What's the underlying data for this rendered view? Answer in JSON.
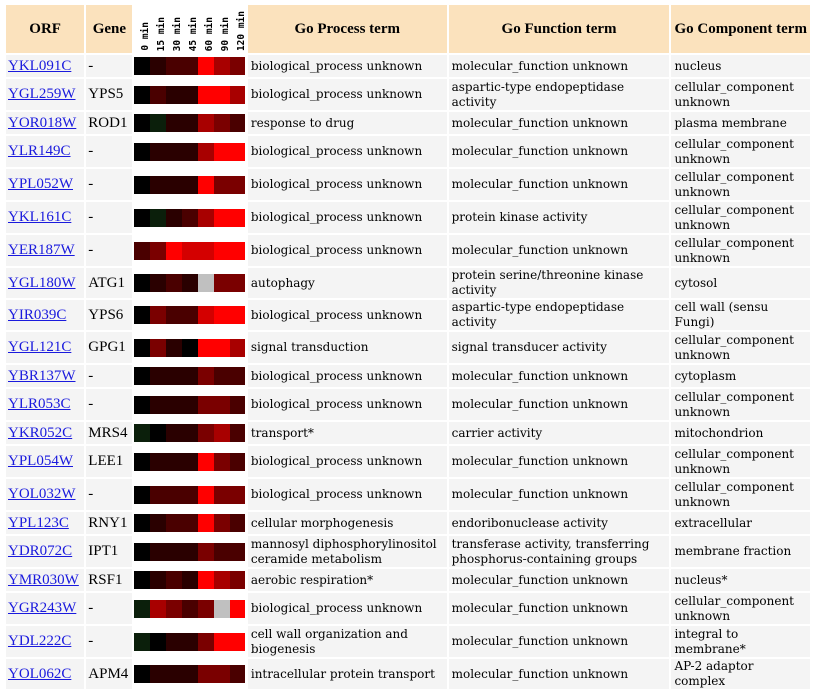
{
  "headers": {
    "orf": "ORF",
    "gene": "Gene",
    "process": "Go Process term",
    "function": "Go Function term",
    "component": "Go Component term"
  },
  "time_points": [
    "0 min",
    "15 min",
    "30 min",
    "45 min",
    "60 min",
    "90 min",
    "120 min"
  ],
  "heat_colors": {
    "n": "#000000",
    "g": "#0b1f0b",
    "a": "#2a0000",
    "b": "#4a0000",
    "c": "#7a0000",
    "d": "#a80000",
    "e": "#d40000",
    "r": "#ff0000",
    "x": "#c0c0c0"
  },
  "rows": [
    {
      "orf": "YKL091C",
      "gene": "-",
      "heat": "nabbrdc",
      "process": "biological_process unknown",
      "function": "molecular_function unknown",
      "component": "nucleus"
    },
    {
      "orf": "YGL259W",
      "gene": "YPS5",
      "heat": "nbaarrd",
      "process": "biological_process unknown",
      "function": "aspartic-type endopeptidase activity",
      "component": "cellular_component unknown"
    },
    {
      "orf": "YOR018W",
      "gene": "ROD1",
      "heat": "ngaadcb",
      "process": "response to drug",
      "function": "molecular_function unknown",
      "component": "plasma membrane"
    },
    {
      "orf": "YLR149C",
      "gene": "-",
      "heat": "naaadrr",
      "process": "biological_process unknown",
      "function": "molecular_function unknown",
      "component": "cellular_component unknown"
    },
    {
      "orf": "YPL052W",
      "gene": "-",
      "heat": "naaarcc",
      "process": "biological_process unknown",
      "function": "molecular_function unknown",
      "component": "cellular_component unknown"
    },
    {
      "orf": "YKL161C",
      "gene": "-",
      "heat": "ngabdrr",
      "process": "biological_process unknown",
      "function": "protein kinase activity",
      "component": "cellular_component unknown"
    },
    {
      "orf": "YER187W",
      "gene": "-",
      "heat": "bcreerr",
      "process": "biological_process unknown",
      "function": "molecular_function unknown",
      "component": "cellular_component unknown"
    },
    {
      "orf": "YGL180W",
      "gene": "ATG1",
      "heat": "nabaxcc",
      "process": "autophagy",
      "function": "protein serine/threonine kinase activity",
      "component": "cytosol"
    },
    {
      "orf": "YIR039C",
      "gene": "YPS6",
      "heat": "ncbberr",
      "process": "biological_process unknown",
      "function": "aspartic-type endopeptidase activity",
      "component": "cell wall (sensu Fungi)"
    },
    {
      "orf": "YGL121C",
      "gene": "GPG1",
      "heat": "ncanrrd",
      "process": "signal transduction",
      "function": "signal transducer activity",
      "component": "cellular_component unknown"
    },
    {
      "orf": "YBR137W",
      "gene": "-",
      "heat": "naaacbb",
      "process": "biological_process unknown",
      "function": "molecular_function unknown",
      "component": "cytoplasm"
    },
    {
      "orf": "YLR053C",
      "gene": "-",
      "heat": "naaaccb",
      "process": "biological_process unknown",
      "function": "molecular_function unknown",
      "component": "cellular_component unknown"
    },
    {
      "orf": "YKR052C",
      "gene": "MRS4",
      "heat": "gnaacdb",
      "process": "transport*",
      "function": "carrier activity",
      "component": "mitochondrion"
    },
    {
      "orf": "YPL054W",
      "gene": "LEE1",
      "heat": "naaarcb",
      "process": "biological_process unknown",
      "function": "molecular_function unknown",
      "component": "cellular_component unknown"
    },
    {
      "orf": "YOL032W",
      "gene": "-",
      "heat": "nbbbrcc",
      "process": "biological_process unknown",
      "function": "molecular_function unknown",
      "component": "cellular_component unknown"
    },
    {
      "orf": "YPL123C",
      "gene": "RNY1",
      "heat": "nabbrcb",
      "process": "cellular morphogenesis",
      "function": "endoribonuclease activity",
      "component": "extracellular"
    },
    {
      "orf": "YDR072C",
      "gene": "IPT1",
      "heat": "naaacbb",
      "process": "mannosyl diphosphorylinositol ceramide metabolism",
      "function": "transferase activity, transferring phosphorus-containing groups",
      "component": "membrane fraction"
    },
    {
      "orf": "YMR030W",
      "gene": "RSF1",
      "heat": "nabardc",
      "process": "aerobic respiration*",
      "function": "molecular_function unknown",
      "component": "nucleus*"
    },
    {
      "orf": "YGR243W",
      "gene": "-",
      "heat": "gdcbcxr",
      "process": "biological_process unknown",
      "function": "molecular_function unknown",
      "component": "cellular_component unknown"
    },
    {
      "orf": "YDL222C",
      "gene": "-",
      "heat": "gnaacrr",
      "process": "cell wall organization and biogenesis",
      "function": "molecular_function unknown",
      "component": "integral to membrane*"
    },
    {
      "orf": "YOL062C",
      "gene": "APM4",
      "heat": "naaaccb",
      "process": "intracellular protein transport",
      "function": "molecular_function unknown",
      "component": "AP-2 adaptor complex"
    }
  ]
}
